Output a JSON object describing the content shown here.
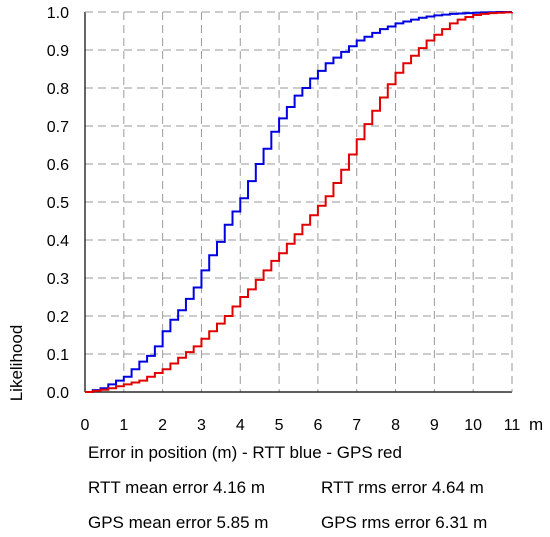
{
  "chart_data": {
    "type": "line",
    "step": true,
    "xlabel": "",
    "x_unit": "m",
    "ylabel": "Likelihood",
    "xlim": [
      0,
      11
    ],
    "ylim": [
      0,
      1.0
    ],
    "x_ticks": [
      0,
      1,
      2,
      3,
      4,
      5,
      6,
      7,
      8,
      9,
      10,
      11
    ],
    "y_ticks": [
      "0.0",
      "0.1",
      "0.2",
      "0.3",
      "0.4",
      "0.5",
      "0.6",
      "0.7",
      "0.8",
      "0.9",
      "1.0"
    ],
    "grid": true,
    "series": [
      {
        "color": "#0000e0",
        "x": [
          0,
          0.2,
          0.4,
          0.6,
          0.8,
          1.0,
          1.2,
          1.4,
          1.6,
          1.8,
          2.0,
          2.2,
          2.4,
          2.6,
          2.8,
          3.0,
          3.2,
          3.4,
          3.6,
          3.8,
          4.0,
          4.2,
          4.4,
          4.6,
          4.8,
          5.0,
          5.2,
          5.4,
          5.6,
          5.8,
          6.0,
          6.2,
          6.4,
          6.6,
          6.8,
          7.0,
          7.2,
          7.4,
          7.6,
          7.8,
          8.0,
          8.2,
          8.4,
          8.6,
          8.8,
          9.0,
          9.2,
          9.4,
          9.6,
          9.8,
          10.0,
          10.2,
          10.4,
          10.6,
          10.8,
          11.0
        ],
        "y": [
          0.0,
          0.005,
          0.01,
          0.02,
          0.03,
          0.04,
          0.06,
          0.08,
          0.095,
          0.12,
          0.16,
          0.19,
          0.215,
          0.245,
          0.275,
          0.32,
          0.36,
          0.395,
          0.44,
          0.475,
          0.51,
          0.555,
          0.6,
          0.64,
          0.685,
          0.72,
          0.75,
          0.78,
          0.8,
          0.825,
          0.845,
          0.865,
          0.88,
          0.895,
          0.91,
          0.925,
          0.935,
          0.945,
          0.955,
          0.962,
          0.97,
          0.975,
          0.98,
          0.985,
          0.988,
          0.991,
          0.993,
          0.995,
          0.996,
          0.997,
          0.998,
          0.999,
          0.9995,
          1.0,
          1.0,
          1.0
        ]
      },
      {
        "color": "#e00000",
        "x": [
          0,
          0.2,
          0.4,
          0.6,
          0.8,
          1.0,
          1.2,
          1.4,
          1.6,
          1.8,
          2.0,
          2.2,
          2.4,
          2.6,
          2.8,
          3.0,
          3.2,
          3.4,
          3.6,
          3.8,
          4.0,
          4.2,
          4.4,
          4.6,
          4.8,
          5.0,
          5.2,
          5.4,
          5.6,
          5.8,
          6.0,
          6.2,
          6.4,
          6.6,
          6.8,
          7.0,
          7.2,
          7.4,
          7.6,
          7.8,
          8.0,
          8.2,
          8.4,
          8.6,
          8.8,
          9.0,
          9.2,
          9.4,
          9.6,
          9.8,
          10.0,
          10.2,
          10.4,
          10.6,
          10.8,
          11.0
        ],
        "y": [
          0.0,
          0.003,
          0.006,
          0.01,
          0.015,
          0.02,
          0.025,
          0.03,
          0.04,
          0.05,
          0.06,
          0.075,
          0.09,
          0.105,
          0.12,
          0.14,
          0.16,
          0.18,
          0.2,
          0.225,
          0.25,
          0.27,
          0.295,
          0.32,
          0.345,
          0.365,
          0.39,
          0.415,
          0.44,
          0.465,
          0.49,
          0.515,
          0.55,
          0.585,
          0.625,
          0.665,
          0.705,
          0.74,
          0.775,
          0.81,
          0.84,
          0.865,
          0.885,
          0.905,
          0.925,
          0.94,
          0.955,
          0.97,
          0.98,
          0.987,
          0.992,
          0.995,
          0.997,
          0.998,
          0.999,
          1.0
        ]
      }
    ]
  },
  "caption": {
    "line1": "Error in position (m) - RTT blue - GPS red",
    "rtt_mean": "RTT mean error 4.16 m",
    "rtt_rms": "RTT rms error 4.64 m",
    "gps_mean": "GPS mean error 5.85 m",
    "gps_rms": "GPS rms error 6.31 m"
  }
}
